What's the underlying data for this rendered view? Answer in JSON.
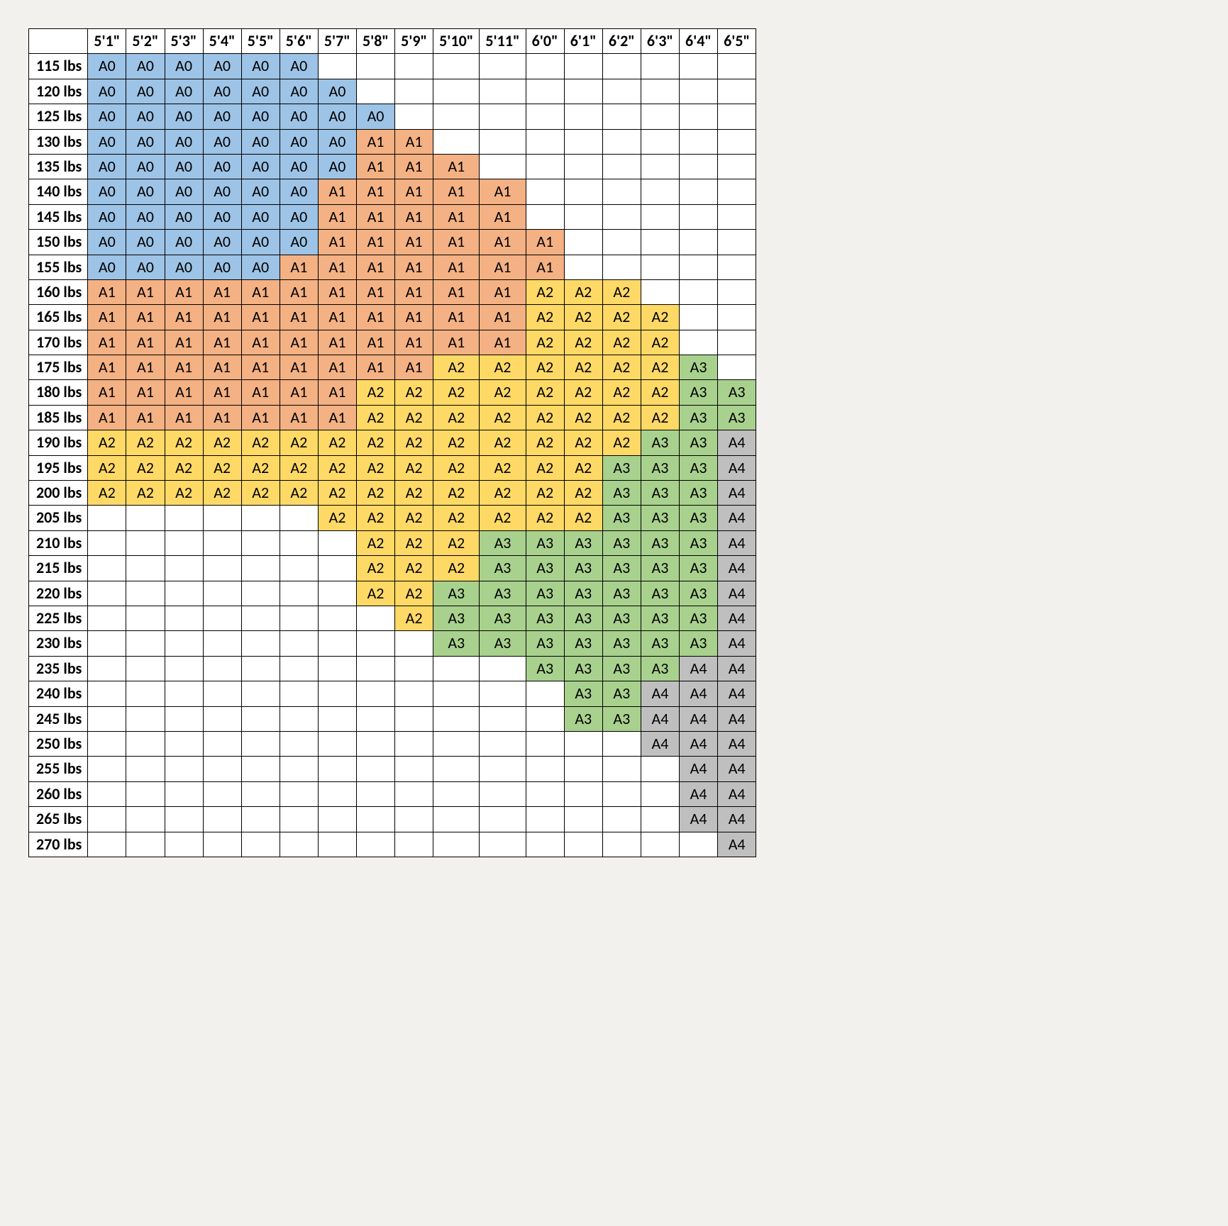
{
  "table": {
    "type": "table",
    "background_color": "#f3f1ee",
    "cell_background": "#ffffff",
    "border_color": "#000000",
    "font_family": "Calibri, Arial, sans-serif",
    "header_fontweight": "bold",
    "rowheader_fontweight": "bold",
    "cell_fontsize": 22,
    "colors": {
      "A0": "#9dc3e6",
      "A1": "#f4b183",
      "A2": "#ffd966",
      "A3": "#a9d18e",
      "A4": "#bfbfbf"
    },
    "columns": [
      "5'1\"",
      "5'2\"",
      "5'3\"",
      "5'4\"",
      "5'5\"",
      "5'6\"",
      "5'7\"",
      "5'8\"",
      "5'9\"",
      "5'10\"",
      "5'11\"",
      "6'0\"",
      "6'1\"",
      "6'2\"",
      "6'3\"",
      "6'4\"",
      "6'5\""
    ],
    "rows": [
      {
        "label": "115 lbs",
        "cells": [
          "A0",
          "A0",
          "A0",
          "A0",
          "A0",
          "A0",
          "",
          "",
          "",
          "",
          "",
          "",
          "",
          "",
          "",
          "",
          ""
        ]
      },
      {
        "label": "120 lbs",
        "cells": [
          "A0",
          "A0",
          "A0",
          "A0",
          "A0",
          "A0",
          "A0",
          "",
          "",
          "",
          "",
          "",
          "",
          "",
          "",
          "",
          ""
        ]
      },
      {
        "label": "125 lbs",
        "cells": [
          "A0",
          "A0",
          "A0",
          "A0",
          "A0",
          "A0",
          "A0",
          "A0",
          "",
          "",
          "",
          "",
          "",
          "",
          "",
          "",
          ""
        ]
      },
      {
        "label": "130 lbs",
        "cells": [
          "A0",
          "A0",
          "A0",
          "A0",
          "A0",
          "A0",
          "A0",
          "A1",
          "A1",
          "",
          "",
          "",
          "",
          "",
          "",
          "",
          ""
        ]
      },
      {
        "label": "135 lbs",
        "cells": [
          "A0",
          "A0",
          "A0",
          "A0",
          "A0",
          "A0",
          "A0",
          "A1",
          "A1",
          "A1",
          "",
          "",
          "",
          "",
          "",
          "",
          ""
        ]
      },
      {
        "label": "140 lbs",
        "cells": [
          "A0",
          "A0",
          "A0",
          "A0",
          "A0",
          "A0",
          "A1",
          "A1",
          "A1",
          "A1",
          "A1",
          "",
          "",
          "",
          "",
          "",
          ""
        ]
      },
      {
        "label": "145 lbs",
        "cells": [
          "A0",
          "A0",
          "A0",
          "A0",
          "A0",
          "A0",
          "A1",
          "A1",
          "A1",
          "A1",
          "A1",
          "",
          "",
          "",
          "",
          "",
          ""
        ]
      },
      {
        "label": "150 lbs",
        "cells": [
          "A0",
          "A0",
          "A0",
          "A0",
          "A0",
          "A0",
          "A1",
          "A1",
          "A1",
          "A1",
          "A1",
          "A1",
          "",
          "",
          "",
          "",
          ""
        ]
      },
      {
        "label": "155 lbs",
        "cells": [
          "A0",
          "A0",
          "A0",
          "A0",
          "A0",
          "A1",
          "A1",
          "A1",
          "A1",
          "A1",
          "A1",
          "A1",
          "",
          "",
          "",
          "",
          ""
        ]
      },
      {
        "label": "160 lbs",
        "cells": [
          "A1",
          "A1",
          "A1",
          "A1",
          "A1",
          "A1",
          "A1",
          "A1",
          "A1",
          "A1",
          "A1",
          "A2",
          "A2",
          "A2",
          "",
          "",
          ""
        ]
      },
      {
        "label": "165 lbs",
        "cells": [
          "A1",
          "A1",
          "A1",
          "A1",
          "A1",
          "A1",
          "A1",
          "A1",
          "A1",
          "A1",
          "A1",
          "A2",
          "A2",
          "A2",
          "A2",
          "",
          ""
        ]
      },
      {
        "label": "170 lbs",
        "cells": [
          "A1",
          "A1",
          "A1",
          "A1",
          "A1",
          "A1",
          "A1",
          "A1",
          "A1",
          "A1",
          "A1",
          "A2",
          "A2",
          "A2",
          "A2",
          "",
          ""
        ]
      },
      {
        "label": "175 lbs",
        "cells": [
          "A1",
          "A1",
          "A1",
          "A1",
          "A1",
          "A1",
          "A1",
          "A1",
          "A1",
          "A2",
          "A2",
          "A2",
          "A2",
          "A2",
          "A2",
          "A3",
          ""
        ]
      },
      {
        "label": "180 lbs",
        "cells": [
          "A1",
          "A1",
          "A1",
          "A1",
          "A1",
          "A1",
          "A1",
          "A2",
          "A2",
          "A2",
          "A2",
          "A2",
          "A2",
          "A2",
          "A2",
          "A3",
          "A3"
        ]
      },
      {
        "label": "185 lbs",
        "cells": [
          "A1",
          "A1",
          "A1",
          "A1",
          "A1",
          "A1",
          "A1",
          "A2",
          "A2",
          "A2",
          "A2",
          "A2",
          "A2",
          "A2",
          "A2",
          "A3",
          "A3"
        ]
      },
      {
        "label": "190 lbs",
        "cells": [
          "A2",
          "A2",
          "A2",
          "A2",
          "A2",
          "A2",
          "A2",
          "A2",
          "A2",
          "A2",
          "A2",
          "A2",
          "A2",
          "A2",
          "A3",
          "A3",
          "A4"
        ]
      },
      {
        "label": "195 lbs",
        "cells": [
          "A2",
          "A2",
          "A2",
          "A2",
          "A2",
          "A2",
          "A2",
          "A2",
          "A2",
          "A2",
          "A2",
          "A2",
          "A2",
          "A3",
          "A3",
          "A3",
          "A4"
        ]
      },
      {
        "label": "200 lbs",
        "cells": [
          "A2",
          "A2",
          "A2",
          "A2",
          "A2",
          "A2",
          "A2",
          "A2",
          "A2",
          "A2",
          "A2",
          "A2",
          "A2",
          "A3",
          "A3",
          "A3",
          "A4"
        ]
      },
      {
        "label": "205 lbs",
        "cells": [
          "",
          "",
          "",
          "",
          "",
          "",
          "A2",
          "A2",
          "A2",
          "A2",
          "A2",
          "A2",
          "A2",
          "A3",
          "A3",
          "A3",
          "A4"
        ]
      },
      {
        "label": "210 lbs",
        "cells": [
          "",
          "",
          "",
          "",
          "",
          "",
          "",
          "A2",
          "A2",
          "A2",
          "A3",
          "A3",
          "A3",
          "A3",
          "A3",
          "A3",
          "A4"
        ]
      },
      {
        "label": "215 lbs",
        "cells": [
          "",
          "",
          "",
          "",
          "",
          "",
          "",
          "A2",
          "A2",
          "A2",
          "A3",
          "A3",
          "A3",
          "A3",
          "A3",
          "A3",
          "A4"
        ]
      },
      {
        "label": "220 lbs",
        "cells": [
          "",
          "",
          "",
          "",
          "",
          "",
          "",
          "A2",
          "A2",
          "A3",
          "A3",
          "A3",
          "A3",
          "A3",
          "A3",
          "A3",
          "A4"
        ]
      },
      {
        "label": "225 lbs",
        "cells": [
          "",
          "",
          "",
          "",
          "",
          "",
          "",
          "",
          "A2",
          "A3",
          "A3",
          "A3",
          "A3",
          "A3",
          "A3",
          "A3",
          "A4"
        ]
      },
      {
        "label": "230 lbs",
        "cells": [
          "",
          "",
          "",
          "",
          "",
          "",
          "",
          "",
          "",
          "A3",
          "A3",
          "A3",
          "A3",
          "A3",
          "A3",
          "A3",
          "A4"
        ]
      },
      {
        "label": "235 lbs",
        "cells": [
          "",
          "",
          "",
          "",
          "",
          "",
          "",
          "",
          "",
          "",
          "",
          "A3",
          "A3",
          "A3",
          "A3",
          "A4",
          "A4"
        ]
      },
      {
        "label": "240 lbs",
        "cells": [
          "",
          "",
          "",
          "",
          "",
          "",
          "",
          "",
          "",
          "",
          "",
          "",
          "A3",
          "A3",
          "A4",
          "A4",
          "A4"
        ]
      },
      {
        "label": "245 lbs",
        "cells": [
          "",
          "",
          "",
          "",
          "",
          "",
          "",
          "",
          "",
          "",
          "",
          "",
          "A3",
          "A3",
          "A4",
          "A4",
          "A4"
        ]
      },
      {
        "label": "250 lbs",
        "cells": [
          "",
          "",
          "",
          "",
          "",
          "",
          "",
          "",
          "",
          "",
          "",
          "",
          "",
          "",
          "A4",
          "A4",
          "A4"
        ]
      },
      {
        "label": "255 lbs",
        "cells": [
          "",
          "",
          "",
          "",
          "",
          "",
          "",
          "",
          "",
          "",
          "",
          "",
          "",
          "",
          "",
          "A4",
          "A4"
        ]
      },
      {
        "label": "260 lbs",
        "cells": [
          "",
          "",
          "",
          "",
          "",
          "",
          "",
          "",
          "",
          "",
          "",
          "",
          "",
          "",
          "",
          "A4",
          "A4"
        ]
      },
      {
        "label": "265 lbs",
        "cells": [
          "",
          "",
          "",
          "",
          "",
          "",
          "",
          "",
          "",
          "",
          "",
          "",
          "",
          "",
          "",
          "A4",
          "A4"
        ]
      },
      {
        "label": "270 lbs",
        "cells": [
          "",
          "",
          "",
          "",
          "",
          "",
          "",
          "",
          "",
          "",
          "",
          "",
          "",
          "",
          "",
          "",
          "A4"
        ]
      }
    ]
  }
}
